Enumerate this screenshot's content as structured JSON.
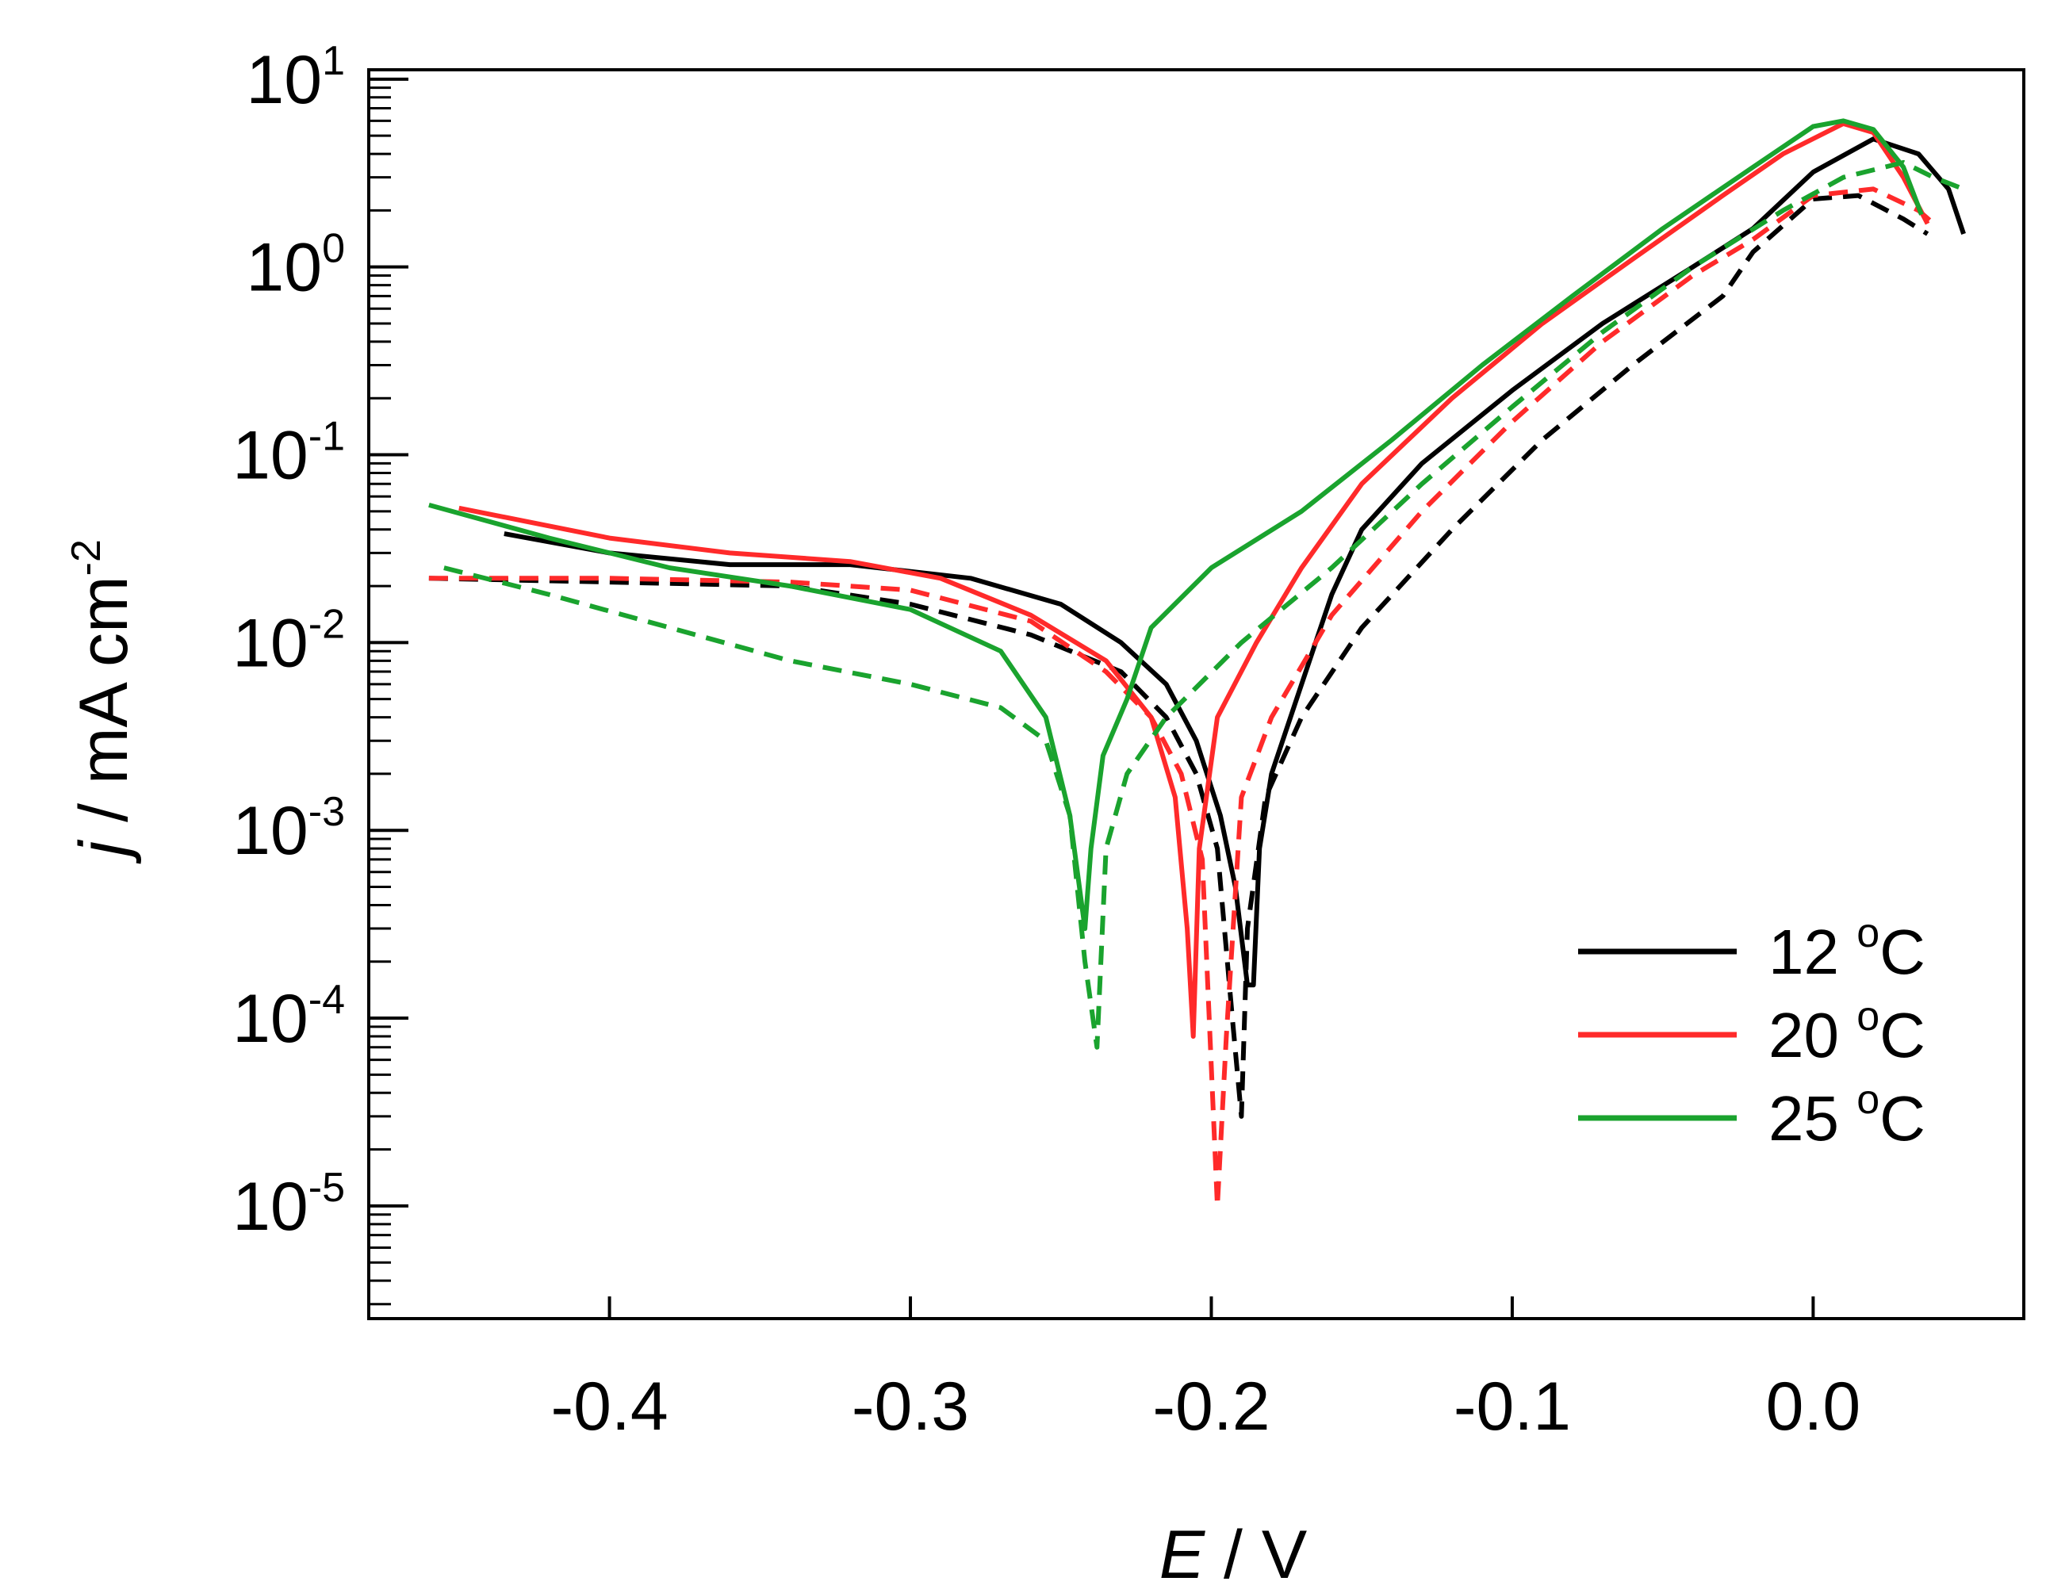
{
  "chart_data": {
    "type": "line",
    "title": "",
    "xlabel": {
      "italic": "E",
      "rest": " / V"
    },
    "ylabel": {
      "italic": "j",
      "rest": " / mA cm",
      "sup": "-2"
    },
    "xlim": [
      -0.48,
      0.07
    ],
    "ylim_log10": [
      -5.6,
      1.05
    ],
    "y_scale": "log",
    "x_ticks": [
      {
        "value": -0.4,
        "label": "-0.4"
      },
      {
        "value": -0.3,
        "label": "-0.3"
      },
      {
        "value": -0.2,
        "label": "-0.2"
      },
      {
        "value": -0.1,
        "label": "-0.1"
      },
      {
        "value": 0.0,
        "label": "0.0"
      }
    ],
    "y_ticks": [
      {
        "exp": 1,
        "base": "10",
        "sup": "1"
      },
      {
        "exp": 0,
        "base": "10",
        "sup": "0"
      },
      {
        "exp": -1,
        "base": "10",
        "sup": "-1"
      },
      {
        "exp": -2,
        "base": "10",
        "sup": "-2"
      },
      {
        "exp": -3,
        "base": "10",
        "sup": "-3"
      },
      {
        "exp": -4,
        "base": "10",
        "sup": "-4"
      },
      {
        "exp": -5,
        "base": "10",
        "sup": "-5"
      }
    ],
    "legend": {
      "placement": "bottom-right",
      "entries": [
        {
          "label": "12 ",
          "sup": "o",
          "unit": "C",
          "color": "#000000"
        },
        {
          "label": "20 ",
          "sup": "o",
          "unit": "C",
          "color": "#ff2a2a"
        },
        {
          "label": "25 ",
          "sup": "o",
          "unit": "C",
          "color": "#1aa32e"
        }
      ]
    },
    "series": [
      {
        "name": "12 oC solid",
        "color": "#000000",
        "style": "solid",
        "points": [
          [
            -0.435,
            0.038
          ],
          [
            -0.4,
            0.03
          ],
          [
            -0.36,
            0.026
          ],
          [
            -0.32,
            0.026
          ],
          [
            -0.28,
            0.022
          ],
          [
            -0.25,
            0.016
          ],
          [
            -0.23,
            0.01
          ],
          [
            -0.215,
            0.006
          ],
          [
            -0.205,
            0.003
          ],
          [
            -0.197,
            0.0012
          ],
          [
            -0.192,
            0.0005
          ],
          [
            -0.188,
            0.00015
          ],
          [
            -0.186,
            0.00015
          ],
          [
            -0.184,
            0.0008
          ],
          [
            -0.18,
            0.002
          ],
          [
            -0.17,
            0.006
          ],
          [
            -0.16,
            0.018
          ],
          [
            -0.15,
            0.04
          ],
          [
            -0.13,
            0.09
          ],
          [
            -0.1,
            0.22
          ],
          [
            -0.07,
            0.5
          ],
          [
            -0.04,
            1.0
          ],
          [
            -0.02,
            1.6
          ],
          [
            0.0,
            3.2
          ],
          [
            0.02,
            4.8
          ],
          [
            0.035,
            4.0
          ],
          [
            0.045,
            2.6
          ],
          [
            0.05,
            1.5
          ]
        ]
      },
      {
        "name": "12 oC dashed",
        "color": "#000000",
        "style": "dashed",
        "points": [
          [
            -0.46,
            0.022
          ],
          [
            -0.4,
            0.021
          ],
          [
            -0.34,
            0.02
          ],
          [
            -0.3,
            0.016
          ],
          [
            -0.26,
            0.011
          ],
          [
            -0.23,
            0.007
          ],
          [
            -0.215,
            0.004
          ],
          [
            -0.205,
            0.002
          ],
          [
            -0.198,
            0.0008
          ],
          [
            -0.193,
            0.0001
          ],
          [
            -0.19,
            3e-05
          ],
          [
            -0.188,
            0.0003
          ],
          [
            -0.182,
            0.0015
          ],
          [
            -0.17,
            0.004
          ],
          [
            -0.15,
            0.012
          ],
          [
            -0.12,
            0.04
          ],
          [
            -0.09,
            0.12
          ],
          [
            -0.06,
            0.3
          ],
          [
            -0.03,
            0.7
          ],
          [
            -0.02,
            1.2
          ],
          [
            0.0,
            2.3
          ],
          [
            0.015,
            2.4
          ],
          [
            0.03,
            1.8
          ],
          [
            0.038,
            1.5
          ]
        ]
      },
      {
        "name": "20 oC solid",
        "color": "#ff2a2a",
        "style": "solid",
        "points": [
          [
            -0.45,
            0.052
          ],
          [
            -0.4,
            0.036
          ],
          [
            -0.36,
            0.03
          ],
          [
            -0.32,
            0.027
          ],
          [
            -0.29,
            0.022
          ],
          [
            -0.26,
            0.014
          ],
          [
            -0.235,
            0.008
          ],
          [
            -0.22,
            0.004
          ],
          [
            -0.212,
            0.0015
          ],
          [
            -0.208,
            0.0003
          ],
          [
            -0.206,
            8e-05
          ],
          [
            -0.204,
            0.0008
          ],
          [
            -0.198,
            0.004
          ],
          [
            -0.185,
            0.01
          ],
          [
            -0.17,
            0.025
          ],
          [
            -0.15,
            0.07
          ],
          [
            -0.12,
            0.2
          ],
          [
            -0.09,
            0.5
          ],
          [
            -0.06,
            1.1
          ],
          [
            -0.03,
            2.4
          ],
          [
            -0.01,
            4.0
          ],
          [
            0.01,
            5.8
          ],
          [
            0.02,
            5.2
          ],
          [
            0.03,
            3.0
          ],
          [
            0.038,
            1.7
          ]
        ]
      },
      {
        "name": "20 oC dashed",
        "color": "#ff2a2a",
        "style": "dashed",
        "points": [
          [
            -0.46,
            0.022
          ],
          [
            -0.4,
            0.022
          ],
          [
            -0.34,
            0.021
          ],
          [
            -0.3,
            0.019
          ],
          [
            -0.26,
            0.013
          ],
          [
            -0.235,
            0.007
          ],
          [
            -0.22,
            0.004
          ],
          [
            -0.21,
            0.002
          ],
          [
            -0.203,
            0.0007
          ],
          [
            -0.198,
            1e-05
          ],
          [
            -0.195,
            8e-05
          ],
          [
            -0.19,
            0.0015
          ],
          [
            -0.18,
            0.004
          ],
          [
            -0.16,
            0.014
          ],
          [
            -0.13,
            0.05
          ],
          [
            -0.1,
            0.15
          ],
          [
            -0.07,
            0.4
          ],
          [
            -0.04,
            0.9
          ],
          [
            -0.02,
            1.4
          ],
          [
            0.0,
            2.4
          ],
          [
            0.02,
            2.6
          ],
          [
            0.035,
            2.0
          ],
          [
            0.04,
            1.7
          ]
        ]
      },
      {
        "name": "25 oC solid",
        "color": "#1aa32e",
        "style": "solid",
        "points": [
          [
            -0.46,
            0.054
          ],
          [
            -0.42,
            0.036
          ],
          [
            -0.38,
            0.025
          ],
          [
            -0.34,
            0.02
          ],
          [
            -0.3,
            0.015
          ],
          [
            -0.27,
            0.009
          ],
          [
            -0.255,
            0.004
          ],
          [
            -0.247,
            0.0012
          ],
          [
            -0.242,
            0.0003
          ],
          [
            -0.24,
            0.0008
          ],
          [
            -0.236,
            0.0025
          ],
          [
            -0.228,
            0.005
          ],
          [
            -0.22,
            0.012
          ],
          [
            -0.2,
            0.025
          ],
          [
            -0.17,
            0.05
          ],
          [
            -0.14,
            0.12
          ],
          [
            -0.11,
            0.3
          ],
          [
            -0.08,
            0.7
          ],
          [
            -0.05,
            1.6
          ],
          [
            -0.02,
            3.4
          ],
          [
            0.0,
            5.6
          ],
          [
            0.01,
            6.0
          ],
          [
            0.02,
            5.4
          ],
          [
            0.03,
            3.4
          ],
          [
            0.036,
            1.9
          ]
        ]
      },
      {
        "name": "25 oC dashed",
        "color": "#1aa32e",
        "style": "dashed",
        "points": [
          [
            -0.455,
            0.025
          ],
          [
            -0.42,
            0.018
          ],
          [
            -0.38,
            0.012
          ],
          [
            -0.34,
            0.008
          ],
          [
            -0.3,
            0.006
          ],
          [
            -0.27,
            0.0045
          ],
          [
            -0.255,
            0.003
          ],
          [
            -0.247,
            0.0012
          ],
          [
            -0.242,
            0.0002
          ],
          [
            -0.238,
            7e-05
          ],
          [
            -0.235,
            0.0008
          ],
          [
            -0.228,
            0.002
          ],
          [
            -0.215,
            0.004
          ],
          [
            -0.19,
            0.01
          ],
          [
            -0.16,
            0.025
          ],
          [
            -0.13,
            0.07
          ],
          [
            -0.1,
            0.18
          ],
          [
            -0.07,
            0.45
          ],
          [
            -0.04,
            1.0
          ],
          [
            -0.01,
            2.0
          ],
          [
            0.01,
            3.0
          ],
          [
            0.03,
            3.6
          ],
          [
            0.04,
            3.0
          ],
          [
            0.05,
            2.6
          ]
        ]
      }
    ]
  }
}
